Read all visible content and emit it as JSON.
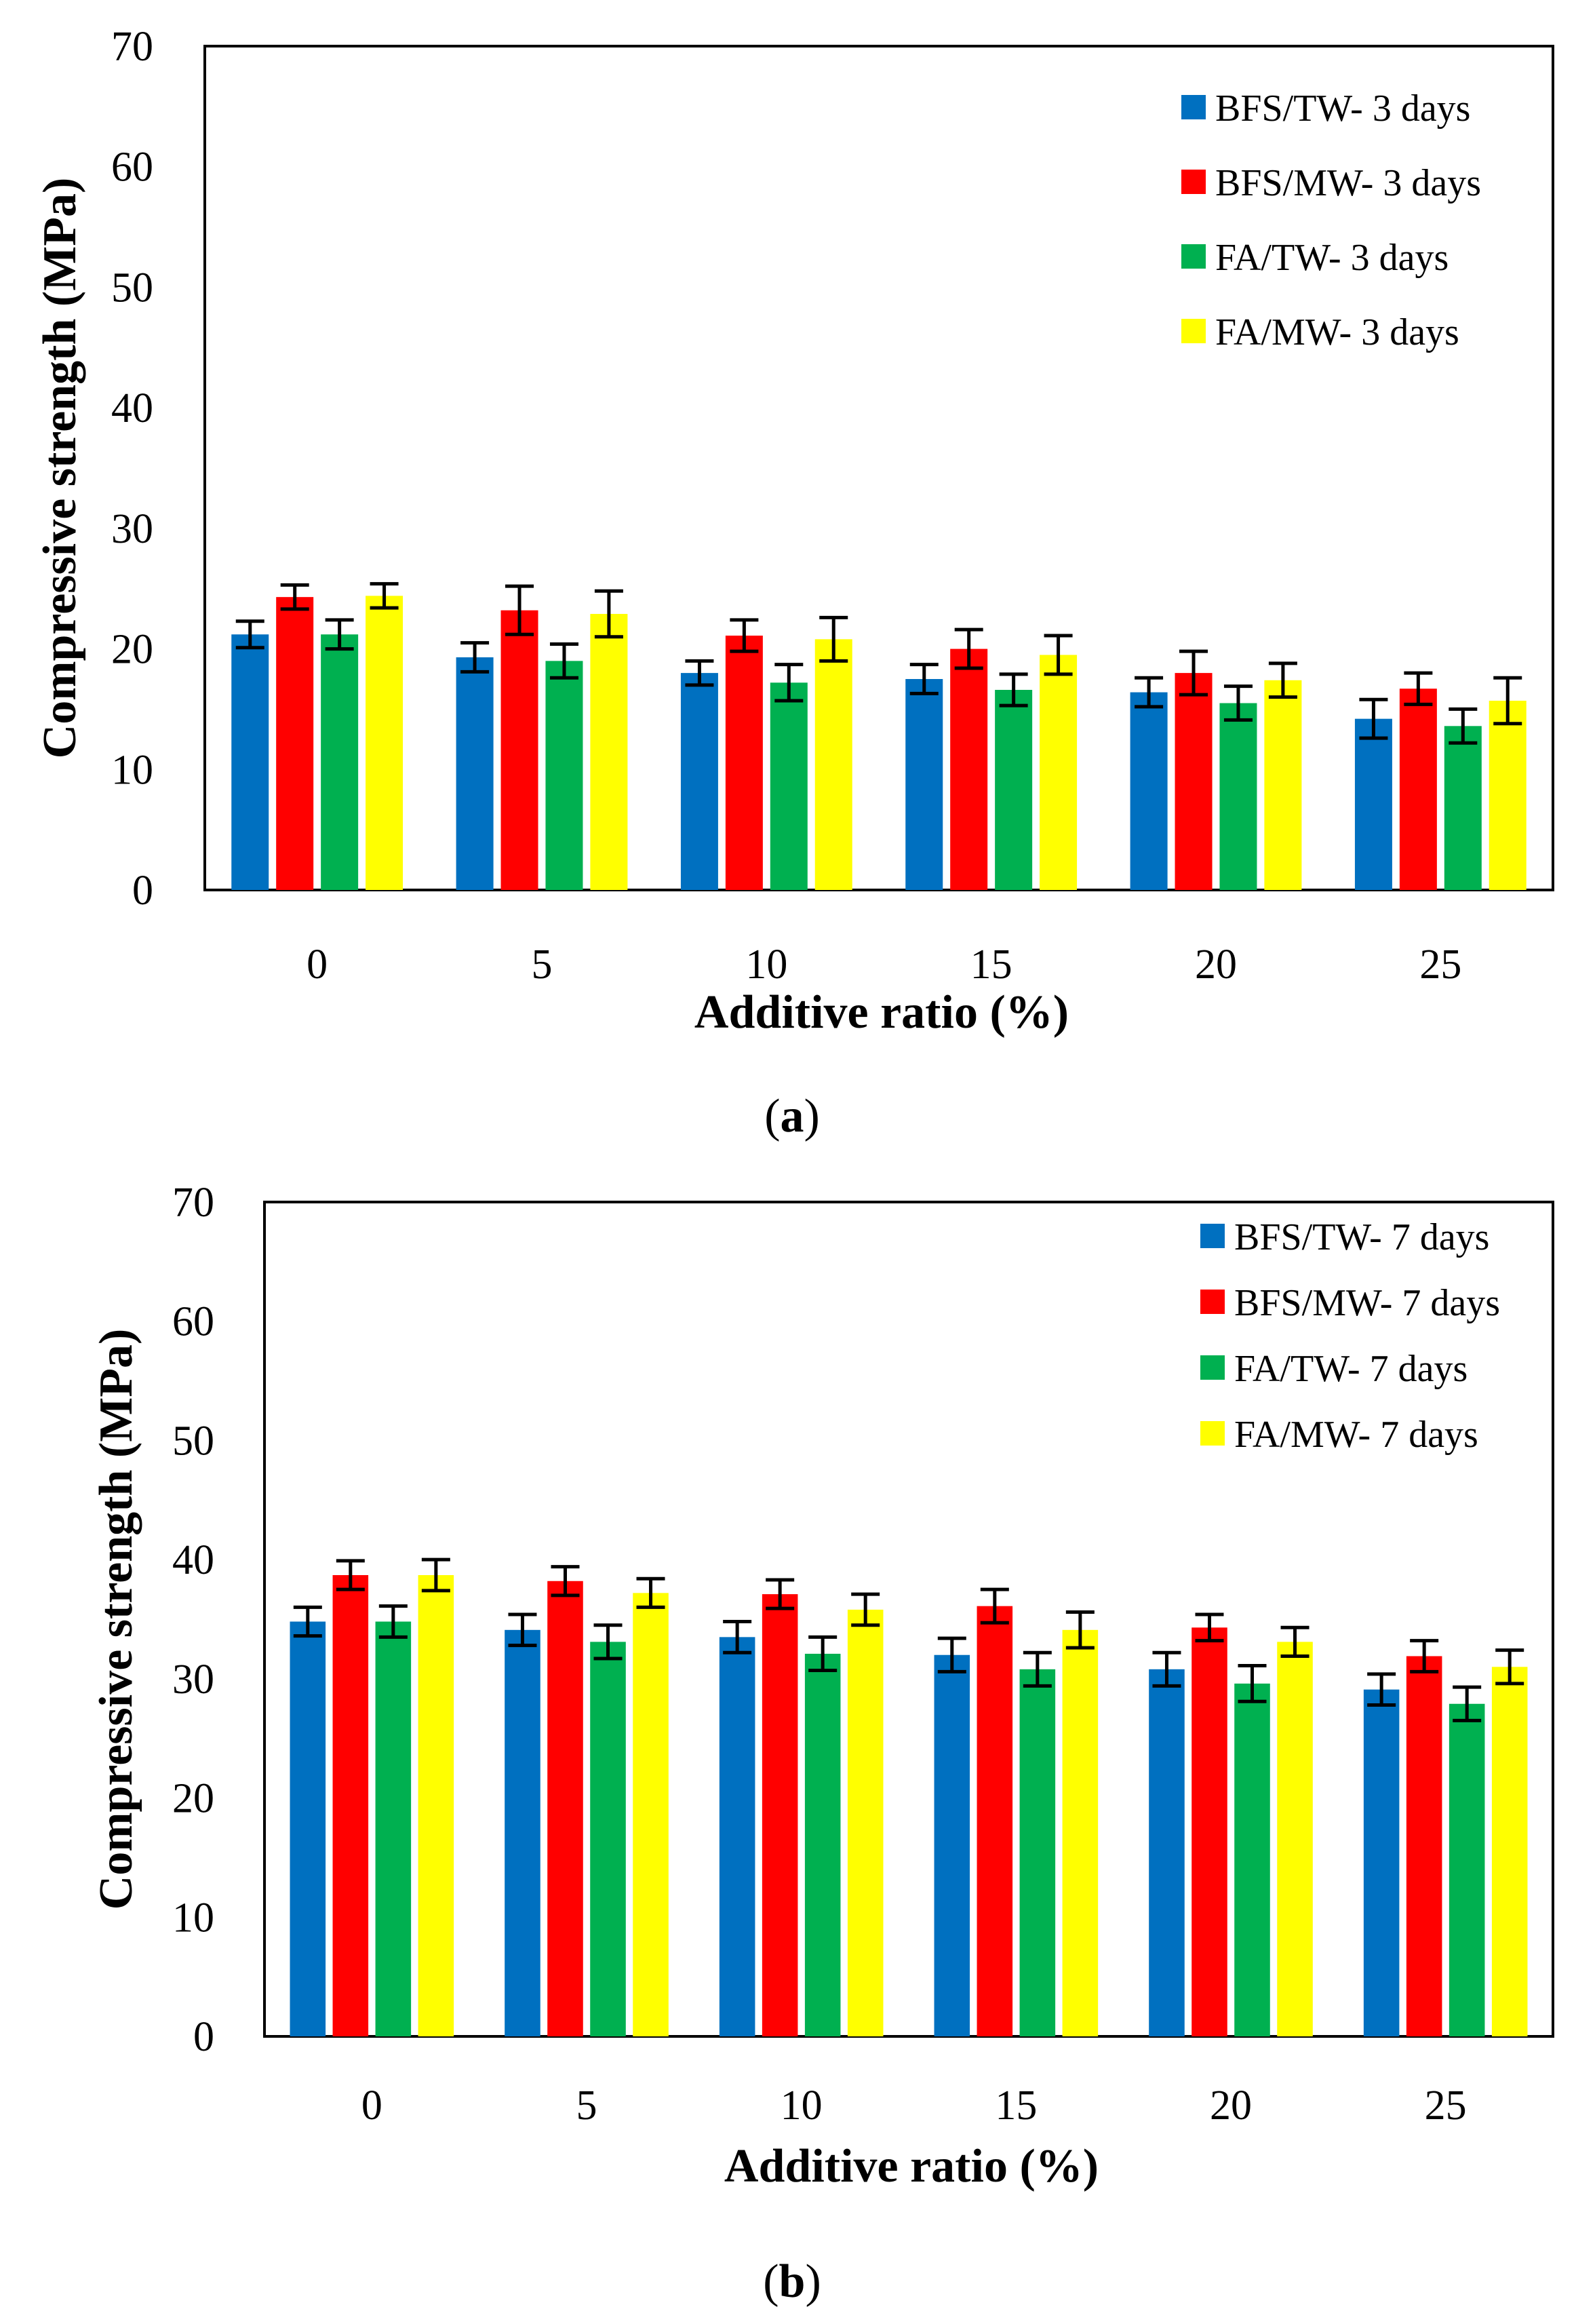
{
  "chart_data": [
    {
      "type": "bar",
      "panel_label": "a",
      "title": "",
      "xlabel": "Additive ratio (%)",
      "ylabel": "Compressive strength (MPa)",
      "ylim": [
        0,
        70
      ],
      "yticks": [
        "0",
        "10",
        "20",
        "30",
        "40",
        "50",
        "60",
        "70"
      ],
      "grid": false,
      "legend_position": "top-right",
      "categories": [
        "0",
        "5",
        "10",
        "15",
        "20",
        "25"
      ],
      "series": [
        {
          "name": "BFS/TW- 3 days",
          "color": "#0070C0",
          "values": [
            21.2,
            19.3,
            18.0,
            17.5,
            16.4,
            14.2
          ],
          "errors": [
            1.1,
            1.2,
            1.0,
            1.2,
            1.2,
            1.6
          ]
        },
        {
          "name": "BFS/MW- 3 days",
          "color": "#FF0000",
          "values": [
            24.3,
            23.2,
            21.1,
            20.0,
            18.0,
            16.7
          ],
          "errors": [
            1.0,
            2.0,
            1.3,
            1.6,
            1.8,
            1.3
          ]
        },
        {
          "name": "FA/TW- 3 days",
          "color": "#00B050",
          "values": [
            21.2,
            19.0,
            17.2,
            16.6,
            15.5,
            13.6
          ],
          "errors": [
            1.2,
            1.4,
            1.5,
            1.3,
            1.4,
            1.4
          ]
        },
        {
          "name": "FA/MW- 3 days",
          "color": "#FFFF00",
          "values": [
            24.4,
            22.9,
            20.8,
            19.5,
            17.4,
            15.7
          ],
          "errors": [
            1.0,
            1.9,
            1.8,
            1.6,
            1.4,
            1.9
          ]
        }
      ]
    },
    {
      "type": "bar",
      "panel_label": "b",
      "title": "",
      "xlabel": "Additive ratio (%)",
      "ylabel": "Compressive strength (MPa)",
      "ylim": [
        0,
        70
      ],
      "yticks": [
        "0",
        "10",
        "20",
        "30",
        "40",
        "50",
        "60",
        "70"
      ],
      "grid": false,
      "legend_position": "top-right",
      "categories": [
        "0",
        "5",
        "10",
        "15",
        "20",
        "25"
      ],
      "series": [
        {
          "name": "BFS/TW- 7 days",
          "color": "#0070C0",
          "values": [
            34.8,
            34.1,
            33.5,
            32.0,
            30.8,
            29.1
          ],
          "errors": [
            1.2,
            1.3,
            1.3,
            1.4,
            1.4,
            1.3
          ]
        },
        {
          "name": "BFS/MW- 7 days",
          "color": "#FF0000",
          "values": [
            38.7,
            38.2,
            37.1,
            36.1,
            34.3,
            31.9
          ],
          "errors": [
            1.2,
            1.2,
            1.2,
            1.4,
            1.1,
            1.3
          ]
        },
        {
          "name": "FA/TW- 7 days",
          "color": "#00B050",
          "values": [
            34.8,
            33.1,
            32.1,
            30.8,
            29.6,
            27.9
          ],
          "errors": [
            1.3,
            1.4,
            1.4,
            1.4,
            1.5,
            1.4
          ]
        },
        {
          "name": "FA/MW- 7 days",
          "color": "#FFFF00",
          "values": [
            38.7,
            37.2,
            35.8,
            34.1,
            33.1,
            31.0
          ],
          "errors": [
            1.3,
            1.2,
            1.3,
            1.5,
            1.2,
            1.4
          ]
        }
      ]
    }
  ]
}
